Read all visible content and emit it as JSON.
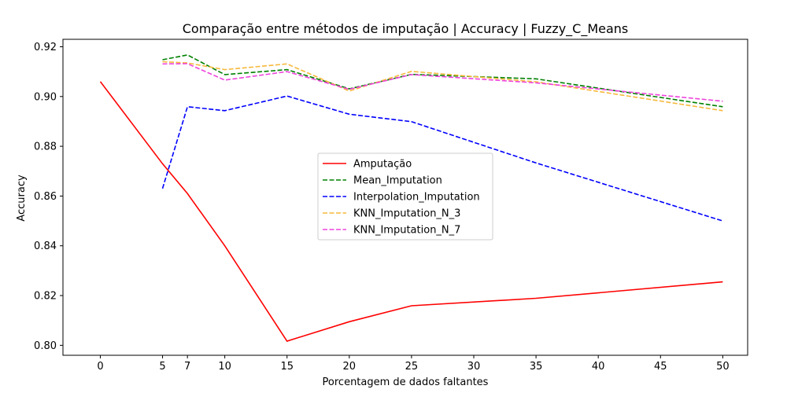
{
  "chart_data": {
    "type": "line",
    "title": "Comparação entre métodos de imputação | Accuracy | Fuzzy_C_Means",
    "xlabel": "Porcentagem de dados faltantes",
    "ylabel": "Accuracy",
    "xlim": [
      -3,
      52
    ],
    "ylim": [
      0.796,
      0.923
    ],
    "xticks": [
      0,
      5,
      7,
      10,
      15,
      20,
      25,
      30,
      35,
      40,
      45,
      50
    ],
    "yticks": [
      0.8,
      0.82,
      0.84,
      0.86,
      0.88,
      0.9,
      0.92
    ],
    "ytick_labels": [
      "0.80",
      "0.82",
      "0.84",
      "0.86",
      "0.88",
      "0.90",
      "0.92"
    ],
    "grid": false,
    "legend_position": "center",
    "series": [
      {
        "name": "Amputação",
        "color": "#ff0000",
        "dashed": false,
        "x": [
          0,
          5,
          7,
          10,
          15,
          20,
          25,
          35,
          50
        ],
        "y": [
          0.906,
          0.873,
          0.861,
          0.84,
          0.8017,
          0.8095,
          0.8159,
          0.8189,
          0.8255
        ]
      },
      {
        "name": "Mean_Imputation",
        "color": "#008000",
        "dashed": true,
        "x": [
          5,
          7,
          10,
          15,
          20,
          25,
          35,
          50
        ],
        "y": [
          0.9148,
          0.9167,
          0.9088,
          0.9108,
          0.9031,
          0.9089,
          0.9071,
          0.8959
        ]
      },
      {
        "name": "Interpolation_Imputation",
        "color": "#0000ff",
        "dashed": true,
        "x": [
          5,
          7,
          10,
          15,
          20,
          25,
          35,
          50
        ],
        "y": [
          0.863,
          0.8959,
          0.8943,
          0.9002,
          0.8929,
          0.8899,
          0.8733,
          0.85
        ]
      },
      {
        "name": "KNN_Imputation_N_3",
        "color": "#f6b93b",
        "dashed": true,
        "x": [
          5,
          7,
          10,
          15,
          20,
          25,
          35,
          50
        ],
        "y": [
          0.914,
          0.9135,
          0.9108,
          0.9131,
          0.9022,
          0.9101,
          0.9059,
          0.8943
        ]
      },
      {
        "name": "KNN_Imputation_N_7",
        "color": "#ee44dd",
        "dashed": true,
        "x": [
          5,
          7,
          10,
          15,
          20,
          25,
          35,
          50
        ],
        "y": [
          0.9131,
          0.9132,
          0.9066,
          0.91,
          0.9029,
          0.9088,
          0.9055,
          0.8981
        ]
      }
    ]
  }
}
